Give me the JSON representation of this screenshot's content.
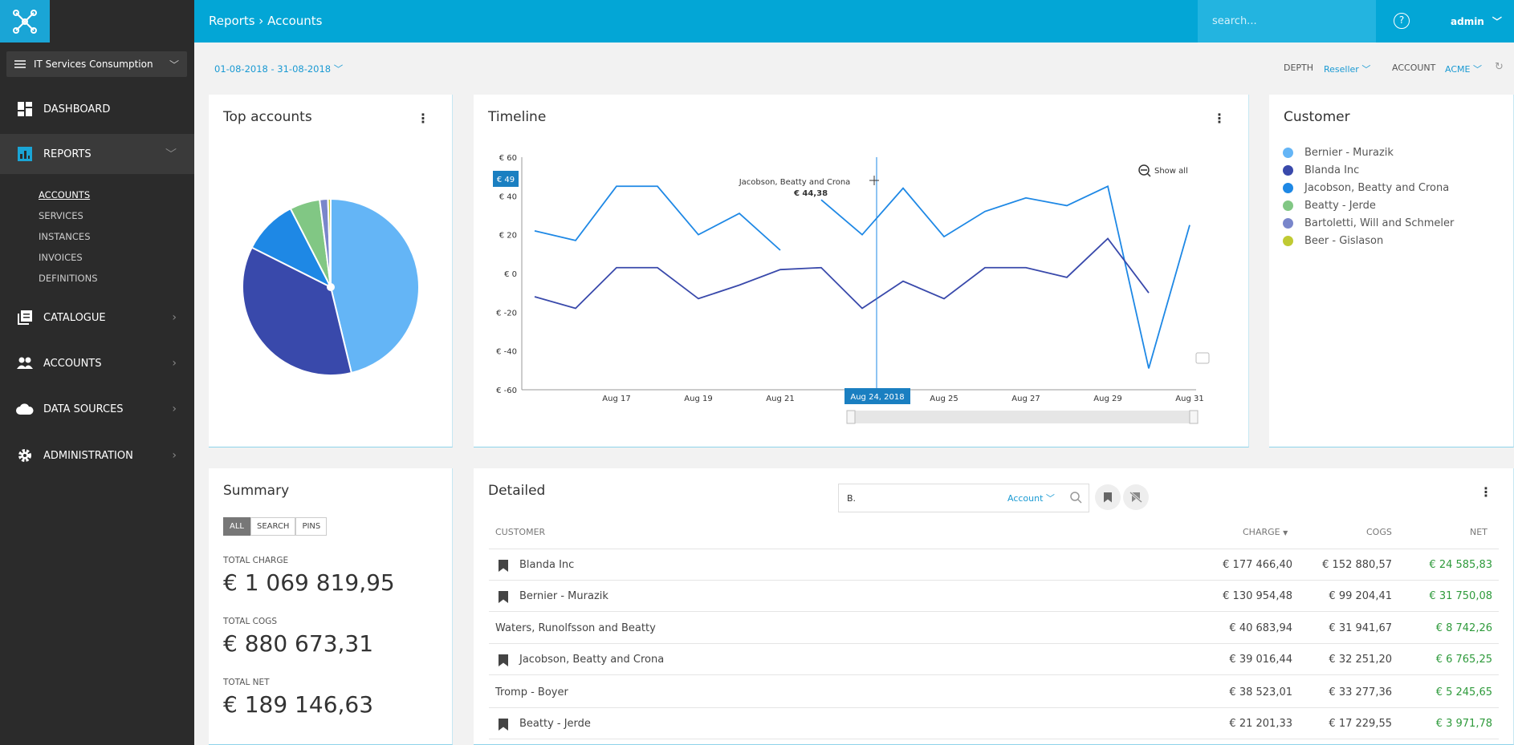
{
  "header": {
    "breadcrumb": "Reports › Accounts",
    "search_placeholder": "search...",
    "help_icon": "?",
    "user": "admin"
  },
  "sidebar": {
    "context": "IT Services Consumption",
    "items": [
      {
        "label": "DASHBOARD"
      },
      {
        "label": "REPORTS"
      },
      {
        "label": "CATALOGUE"
      },
      {
        "label": "ACCOUNTS"
      },
      {
        "label": "DATA SOURCES"
      },
      {
        "label": "ADMINISTRATION"
      }
    ],
    "reports_sub": [
      "ACCOUNTS",
      "SERVICES",
      "INSTANCES",
      "INVOICES",
      "DEFINITIONS"
    ]
  },
  "filters": {
    "date_range": "01-08-2018 - 31-08-2018",
    "depth_label": "DEPTH",
    "depth_value": "Reseller",
    "account_label": "ACCOUNT",
    "account_value": "ACME"
  },
  "top_accounts": {
    "title": "Top accounts"
  },
  "timeline": {
    "title": "Timeline",
    "show_all": "Show all",
    "tooltip_name": "Jacobson, Beatty and Crona",
    "tooltip_value": "€ 44,38",
    "y_marker": "€ 49",
    "x_marker": "Aug 24, 2018"
  },
  "customer_legend": {
    "title": "Customer",
    "items": [
      {
        "name": "Bernier - Murazik",
        "color": "#64b5f6"
      },
      {
        "name": "Blanda Inc",
        "color": "#3949ab"
      },
      {
        "name": "Jacobson, Beatty and Crona",
        "color": "#1e88e5"
      },
      {
        "name": "Beatty - Jerde",
        "color": "#81c784"
      },
      {
        "name": "Bartoletti, Will and Schmeler",
        "color": "#7986cb"
      },
      {
        "name": "Beer - Gislason",
        "color": "#c0ca33"
      }
    ]
  },
  "summary": {
    "title": "Summary",
    "tabs": [
      "ALL",
      "SEARCH",
      "PINS"
    ],
    "total_charge_label": "TOTAL CHARGE",
    "total_charge": "€ 1 069 819,95",
    "total_cogs_label": "TOTAL COGS",
    "total_cogs": "€ 880 673,31",
    "total_net_label": "TOTAL NET",
    "total_net": "€ 189 146,63"
  },
  "detailed": {
    "title": "Detailed",
    "search_value": "B.",
    "search_scope": "Account",
    "columns": [
      "CUSTOMER",
      "CHARGE",
      "COGS",
      "NET"
    ],
    "rows": [
      {
        "customer": "Blanda Inc",
        "charge": "€ 177 466,40",
        "cogs": "€ 152 880,57",
        "net": "€ 24 585,83",
        "pinned": true
      },
      {
        "customer": "Bernier - Murazik",
        "charge": "€ 130 954,48",
        "cogs": "€ 99 204,41",
        "net": "€ 31 750,08",
        "pinned": true
      },
      {
        "customer": "Waters, Runolfsson and Beatty",
        "charge": "€ 40 683,94",
        "cogs": "€ 31 941,67",
        "net": "€ 8 742,26",
        "pinned": false
      },
      {
        "customer": "Jacobson, Beatty and Crona",
        "charge": "€ 39 016,44",
        "cogs": "€ 32 251,20",
        "net": "€ 6 765,25",
        "pinned": true
      },
      {
        "customer": "Tromp - Boyer",
        "charge": "€ 38 523,01",
        "cogs": "€ 33 277,36",
        "net": "€ 5 245,65",
        "pinned": false
      },
      {
        "customer": "Beatty - Jerde",
        "charge": "€ 21 201,33",
        "cogs": "€ 17 229,55",
        "net": "€ 3 971,78",
        "pinned": true
      }
    ]
  },
  "chart_data": [
    {
      "type": "pie",
      "title": "Top accounts",
      "categories": [
        "Bernier - Murazik",
        "Blanda Inc",
        "Jacobson, Beatty and Crona",
        "Beatty - Jerde",
        "Bartoletti, Will and Schmeler",
        "Beer - Gislason"
      ],
      "values": [
        46,
        36,
        10,
        5.5,
        1.5,
        0.5
      ],
      "colors": [
        "#64b5f6",
        "#3949ab",
        "#1e88e5",
        "#81c784",
        "#7986cb",
        "#c0ca33"
      ]
    },
    {
      "type": "line",
      "title": "Timeline",
      "ylim": [
        -60,
        60
      ],
      "yticks": [
        "€ 60",
        "€ 40",
        "€ 20",
        "€ 0",
        "€ -20",
        "€ -40",
        "€ -60"
      ],
      "xticks": [
        "Aug 17",
        "Aug 19",
        "Aug 21",
        "Aug 23",
        "Aug 25",
        "Aug 27",
        "Aug 29",
        "Aug 31"
      ],
      "x": [
        "Aug 15",
        "Aug 16",
        "Aug 17",
        "Aug 18",
        "Aug 19",
        "Aug 20",
        "Aug 21",
        "Aug 22",
        "Aug 23",
        "Aug 24",
        "Aug 25",
        "Aug 26",
        "Aug 27",
        "Aug 28",
        "Aug 29",
        "Aug 30",
        "Aug 31"
      ],
      "series": [
        {
          "color": "#1e88e5",
          "values": [
            22,
            17,
            45,
            45,
            20,
            31,
            12,
            38,
            20,
            44,
            19,
            32,
            39,
            35,
            45,
            -49,
            25
          ],
          "gap_after_index": 6
        },
        {
          "color": "#3949ab",
          "values": [
            -12,
            -18,
            3,
            3,
            -13,
            -6,
            2,
            3,
            -18,
            -4,
            -13,
            3,
            3,
            -2,
            18,
            -10,
            null
          ]
        }
      ]
    }
  ]
}
